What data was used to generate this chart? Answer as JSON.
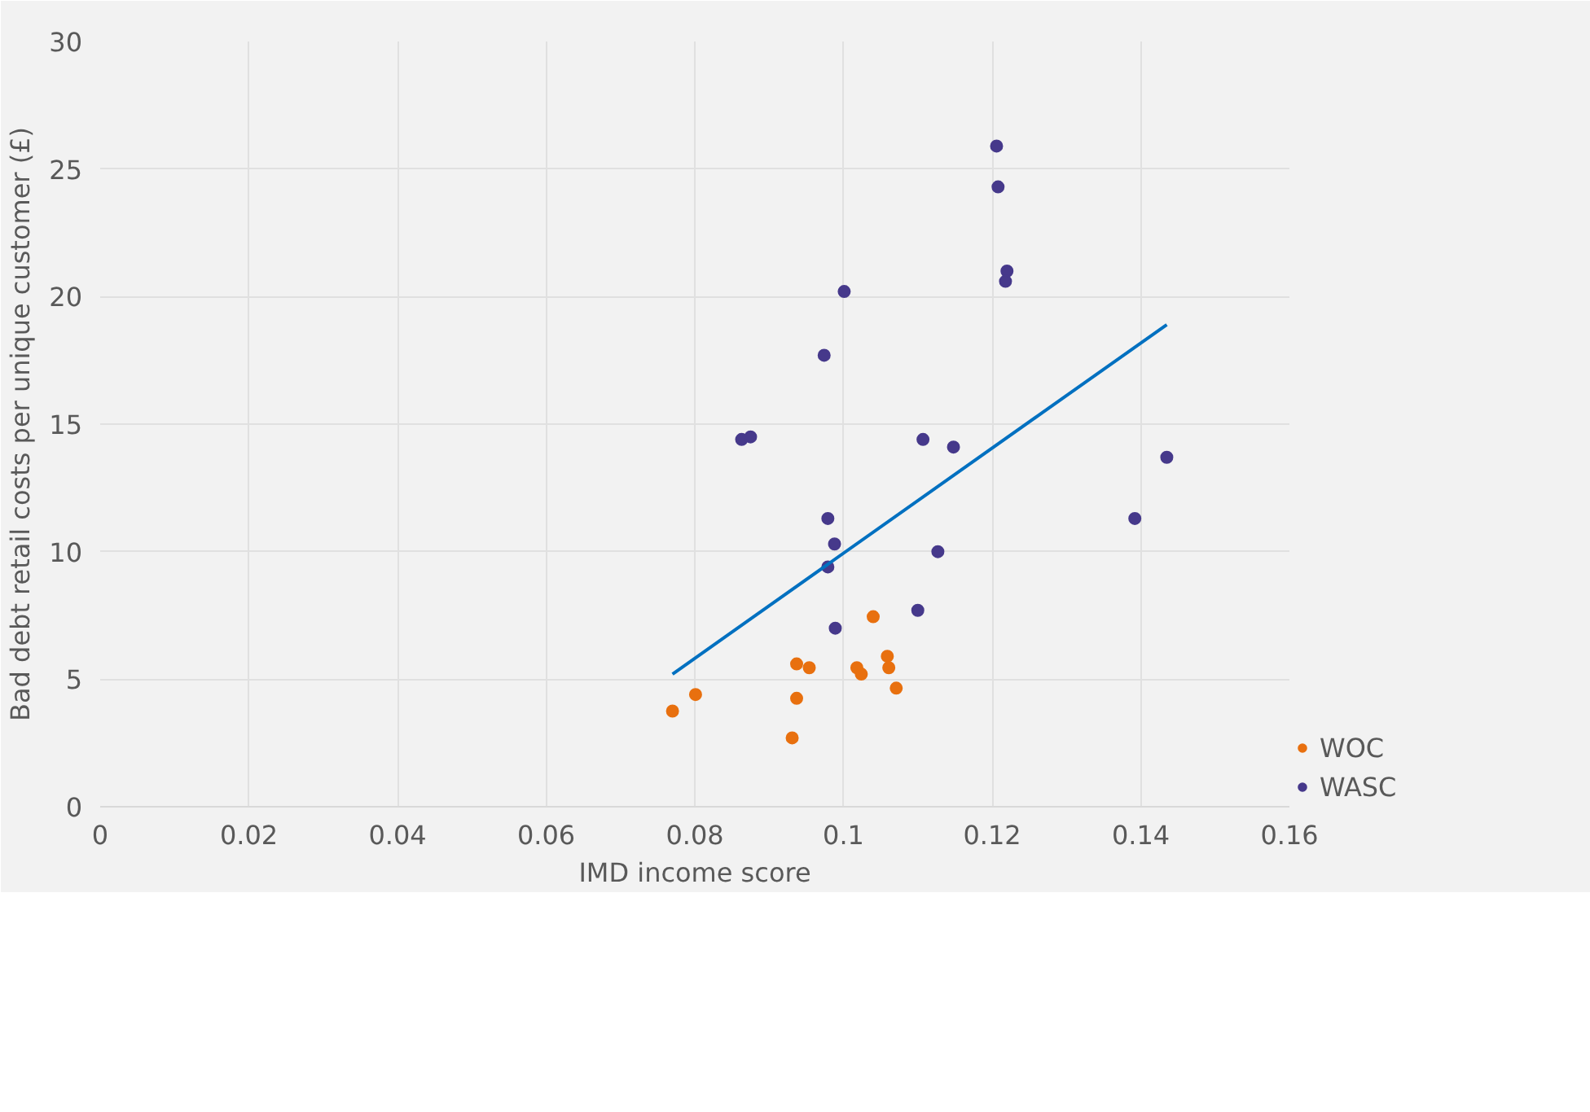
{
  "chart_data": {
    "type": "scatter",
    "xlabel": "IMD income score",
    "ylabel": "Bad debt retail costs per unique customer (£)",
    "xlim": [
      0,
      0.16
    ],
    "xticks": [
      0,
      0.02,
      0.04,
      0.06,
      0.08,
      0.1,
      0.12,
      0.14,
      0.16
    ],
    "ylim": [
      0,
      30
    ],
    "yticks": [
      0,
      5,
      10,
      15,
      20,
      25,
      30
    ],
    "grid": true,
    "legend": "bottom right",
    "series": [
      {
        "name": "WOC",
        "color": "#e8700f",
        "marker": "circle",
        "x": [
          0.077,
          0.0801,
          0.0937,
          0.0954,
          0.0937,
          0.0931,
          0.104,
          0.1018,
          0.1024,
          0.1059,
          0.1061,
          0.1071
        ],
        "values": [
          3.75,
          4.4,
          5.6,
          5.45,
          4.25,
          2.7,
          7.45,
          5.45,
          5.2,
          5.9,
          5.45,
          4.65
        ]
      },
      {
        "name": "WASC",
        "color": "#46398b",
        "marker": "circle",
        "x": [
          0.1206,
          0.1208,
          0.122,
          0.1218,
          0.1001,
          0.0974,
          0.0863,
          0.0875,
          0.1107,
          0.1148,
          0.1435,
          0.0979,
          0.0988,
          0.0979,
          0.1127,
          0.0989,
          0.11,
          0.1392
        ],
        "values": [
          25.9,
          24.3,
          21.0,
          20.6,
          20.2,
          17.7,
          14.4,
          14.5,
          14.4,
          14.1,
          13.7,
          11.3,
          10.3,
          9.4,
          10.0,
          7.0,
          7.7,
          11.3
        ]
      },
      {
        "type": "line",
        "color": "#0070c0",
        "x": [
          0.077,
          0.1435
        ],
        "values": [
          5.2,
          18.9
        ]
      }
    ]
  }
}
